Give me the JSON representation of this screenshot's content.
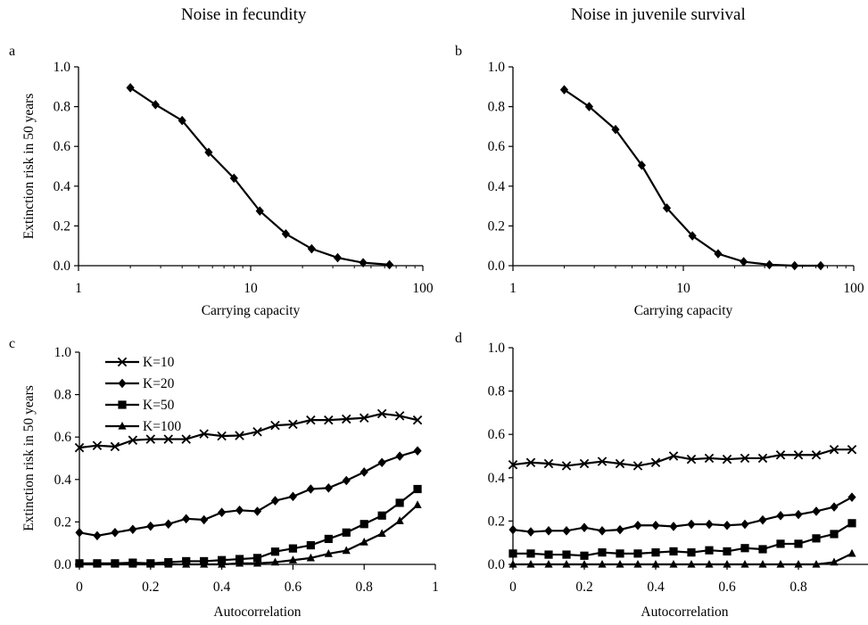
{
  "column_titles": [
    "Noise in fecundity",
    "Noise in juvenile survival"
  ],
  "chart_data": [
    {
      "panel": "a",
      "type": "line",
      "xscale": "log",
      "xlabel": "Carrying capacity",
      "ylabel": "Extinction risk in 50 years",
      "xlim": [
        1,
        100
      ],
      "ylim": [
        0,
        1
      ],
      "xticks": [
        1,
        10,
        100
      ],
      "xtick_labels": [
        "1",
        "10",
        "100"
      ],
      "yticks": [
        0,
        0.2,
        0.4,
        0.6,
        0.8,
        1.0
      ],
      "ytick_labels": [
        "0.0",
        "0.2",
        "0.4",
        "0.6",
        "0.8",
        "1.0"
      ],
      "legend": [],
      "series": [
        {
          "marker": "diamond",
          "x": [
            2,
            2.8,
            4,
            5.7,
            8,
            11.3,
            16,
            22.6,
            32,
            45,
            64
          ],
          "y": [
            0.895,
            0.81,
            0.73,
            0.57,
            0.44,
            0.275,
            0.16,
            0.085,
            0.04,
            0.015,
            0.005
          ]
        }
      ]
    },
    {
      "panel": "b",
      "type": "line",
      "xscale": "log",
      "xlabel": "Carrying capacity",
      "ylabel": "",
      "xlim": [
        1,
        100
      ],
      "ylim": [
        0,
        1
      ],
      "xticks": [
        1,
        10,
        100
      ],
      "xtick_labels": [
        "1",
        "10",
        "100"
      ],
      "yticks": [
        0,
        0.2,
        0.4,
        0.6,
        0.8,
        1.0
      ],
      "ytick_labels": [
        "0.0",
        "0.2",
        "0.4",
        "0.6",
        "0.8",
        "1.0"
      ],
      "legend": [],
      "series": [
        {
          "marker": "diamond",
          "x": [
            2,
            2.8,
            4,
            5.7,
            8,
            11.3,
            16,
            22.6,
            32,
            45,
            64
          ],
          "y": [
            0.885,
            0.8,
            0.685,
            0.505,
            0.29,
            0.15,
            0.06,
            0.02,
            0.005,
            0.0,
            0.0
          ]
        }
      ]
    },
    {
      "panel": "c",
      "type": "line",
      "xscale": "linear",
      "xlabel": "Autocorrelation",
      "ylabel": "Extinction risk in 50 years",
      "xlim": [
        0,
        1
      ],
      "ylim": [
        0,
        1
      ],
      "xticks": [
        0,
        0.2,
        0.4,
        0.6,
        0.8,
        1
      ],
      "xtick_labels": [
        "0",
        "0.2",
        "0.4",
        "0.6",
        "0.8",
        "1"
      ],
      "yticks": [
        0,
        0.2,
        0.4,
        0.6,
        0.8,
        1.0
      ],
      "ytick_labels": [
        "0.0",
        "0.2",
        "0.4",
        "0.6",
        "0.8",
        "1.0"
      ],
      "legend": [
        "K=10",
        "K=20",
        "K=50",
        "K=100"
      ],
      "series": [
        {
          "name": "K=10",
          "marker": "x",
          "x": [
            0,
            0.05,
            0.1,
            0.15,
            0.2,
            0.25,
            0.3,
            0.35,
            0.4,
            0.45,
            0.5,
            0.55,
            0.6,
            0.65,
            0.7,
            0.75,
            0.8,
            0.85,
            0.9,
            0.95
          ],
          "y": [
            0.55,
            0.56,
            0.555,
            0.585,
            0.59,
            0.59,
            0.59,
            0.615,
            0.605,
            0.607,
            0.625,
            0.655,
            0.66,
            0.68,
            0.68,
            0.685,
            0.69,
            0.71,
            0.7,
            0.68
          ]
        },
        {
          "name": "K=20",
          "marker": "diamond",
          "x": [
            0,
            0.05,
            0.1,
            0.15,
            0.2,
            0.25,
            0.3,
            0.35,
            0.4,
            0.45,
            0.5,
            0.55,
            0.6,
            0.65,
            0.7,
            0.75,
            0.8,
            0.85,
            0.9,
            0.95
          ],
          "y": [
            0.15,
            0.135,
            0.15,
            0.165,
            0.18,
            0.19,
            0.215,
            0.21,
            0.245,
            0.255,
            0.25,
            0.3,
            0.32,
            0.355,
            0.36,
            0.395,
            0.435,
            0.48,
            0.51,
            0.535
          ]
        },
        {
          "name": "K=50",
          "marker": "square",
          "x": [
            0,
            0.05,
            0.1,
            0.15,
            0.2,
            0.25,
            0.3,
            0.35,
            0.4,
            0.45,
            0.5,
            0.55,
            0.6,
            0.65,
            0.7,
            0.75,
            0.8,
            0.85,
            0.9,
            0.95
          ],
          "y": [
            0.005,
            0.005,
            0.005,
            0.008,
            0.005,
            0.01,
            0.015,
            0.015,
            0.02,
            0.025,
            0.03,
            0.06,
            0.075,
            0.09,
            0.12,
            0.15,
            0.19,
            0.23,
            0.29,
            0.355
          ]
        },
        {
          "name": "K=100",
          "marker": "triangle",
          "x": [
            0,
            0.05,
            0.1,
            0.15,
            0.2,
            0.25,
            0.3,
            0.35,
            0.4,
            0.45,
            0.5,
            0.55,
            0.6,
            0.65,
            0.7,
            0.75,
            0.8,
            0.85,
            0.9,
            0.95
          ],
          "y": [
            0.0,
            0.0,
            0.0,
            0.0,
            0.0,
            0.0,
            0.0,
            0.0,
            0.0,
            0.005,
            0.005,
            0.01,
            0.02,
            0.03,
            0.05,
            0.065,
            0.105,
            0.145,
            0.205,
            0.28
          ]
        }
      ]
    },
    {
      "panel": "d",
      "type": "line",
      "xscale": "linear",
      "xlabel": "Autocorrelation",
      "ylabel": "",
      "xlim": [
        0,
        1
      ],
      "ylim": [
        0,
        1
      ],
      "xticks": [
        0,
        0.2,
        0.4,
        0.6,
        0.8
      ],
      "xtick_labels": [
        "0",
        "0.2",
        "0.4",
        "0.6",
        "0.8"
      ],
      "yticks": [
        0,
        0.2,
        0.4,
        0.6,
        0.8,
        1.0
      ],
      "ytick_labels": [
        "0.0",
        "0.2",
        "0.4",
        "0.6",
        "0.8",
        "1.0"
      ],
      "legend": [],
      "series": [
        {
          "name": "K=10",
          "marker": "x",
          "x": [
            0,
            0.05,
            0.1,
            0.15,
            0.2,
            0.25,
            0.3,
            0.35,
            0.4,
            0.45,
            0.5,
            0.55,
            0.6,
            0.65,
            0.7,
            0.75,
            0.8,
            0.85,
            0.9,
            0.95
          ],
          "y": [
            0.46,
            0.47,
            0.465,
            0.455,
            0.465,
            0.475,
            0.465,
            0.455,
            0.47,
            0.5,
            0.485,
            0.49,
            0.485,
            0.49,
            0.49,
            0.505,
            0.505,
            0.505,
            0.53,
            0.53
          ]
        },
        {
          "name": "K=20",
          "marker": "diamond",
          "x": [
            0,
            0.05,
            0.1,
            0.15,
            0.2,
            0.25,
            0.3,
            0.35,
            0.4,
            0.45,
            0.5,
            0.55,
            0.6,
            0.65,
            0.7,
            0.75,
            0.8,
            0.85,
            0.9,
            0.95
          ],
          "y": [
            0.16,
            0.15,
            0.155,
            0.155,
            0.17,
            0.155,
            0.16,
            0.18,
            0.18,
            0.175,
            0.185,
            0.185,
            0.18,
            0.185,
            0.205,
            0.225,
            0.23,
            0.245,
            0.265,
            0.31
          ]
        },
        {
          "name": "K=50",
          "marker": "square",
          "x": [
            0,
            0.05,
            0.1,
            0.15,
            0.2,
            0.25,
            0.3,
            0.35,
            0.4,
            0.45,
            0.5,
            0.55,
            0.6,
            0.65,
            0.7,
            0.75,
            0.8,
            0.85,
            0.9,
            0.95
          ],
          "y": [
            0.05,
            0.05,
            0.045,
            0.045,
            0.04,
            0.055,
            0.05,
            0.05,
            0.055,
            0.06,
            0.055,
            0.065,
            0.06,
            0.075,
            0.07,
            0.095,
            0.095,
            0.12,
            0.14,
            0.19
          ]
        },
        {
          "name": "K=100",
          "marker": "triangle",
          "x": [
            0,
            0.05,
            0.1,
            0.15,
            0.2,
            0.25,
            0.3,
            0.35,
            0.4,
            0.45,
            0.5,
            0.55,
            0.6,
            0.65,
            0.7,
            0.75,
            0.8,
            0.85,
            0.9,
            0.95
          ],
          "y": [
            0.0,
            0.0,
            0.0,
            0.0,
            0.0,
            0.0,
            0.0,
            0.0,
            0.0,
            0.0,
            0.0,
            0.0,
            0.0,
            0.0,
            0.0,
            0.0,
            0.0,
            0.0,
            0.01,
            0.05
          ]
        }
      ]
    }
  ]
}
